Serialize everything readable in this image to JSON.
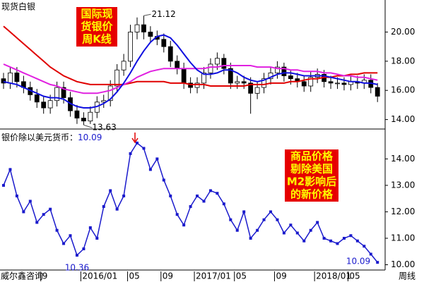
{
  "chart_data": [
    {
      "type": "candlestick",
      "title": "现货白银",
      "badge": [
        "国际现",
        "货银价",
        "周K线"
      ],
      "open": [
        16.8,
        16.5,
        17.2,
        16.6,
        16.2,
        15.7,
        15.2,
        14.8,
        15.3,
        16.2,
        15.5,
        14.6,
        14.1,
        13.9,
        14.5,
        15.2,
        15.3,
        16.3,
        17.4,
        18.0,
        20.0,
        20.5,
        20.0,
        19.7,
        19.5,
        19.0,
        18.0,
        17.5,
        16.5,
        16.2,
        16.5,
        17.2,
        17.8,
        18.2,
        17.5,
        16.5,
        16.6,
        16.5,
        15.8,
        16.2,
        16.8,
        17.2,
        17.6,
        17.0,
        16.8,
        16.6,
        16.3,
        16.9,
        17.1,
        16.6,
        16.5,
        16.5,
        16.4,
        16.6,
        16.5,
        16.7,
        16.2
      ],
      "high": [
        17.2,
        17.6,
        17.6,
        17.0,
        16.6,
        16.1,
        15.6,
        15.7,
        16.6,
        16.6,
        15.9,
        15.0,
        14.5,
        14.9,
        15.6,
        15.7,
        16.7,
        17.8,
        18.5,
        20.5,
        21.0,
        21.12,
        20.4,
        20.1,
        19.9,
        19.4,
        18.4,
        17.9,
        16.9,
        16.9,
        17.6,
        18.2,
        18.6,
        18.5,
        17.9,
        17.0,
        17.0,
        16.9,
        16.6,
        17.2,
        17.6,
        18.0,
        17.9,
        17.4,
        17.2,
        17.0,
        17.3,
        17.5,
        17.4,
        17.0,
        16.9,
        16.9,
        17.0,
        17.0,
        17.1,
        17.1,
        16.5
      ],
      "low": [
        16.1,
        16.1,
        16.2,
        15.8,
        15.3,
        14.8,
        14.4,
        14.4,
        14.9,
        15.1,
        14.2,
        13.7,
        13.63,
        13.7,
        14.1,
        14.8,
        14.9,
        15.9,
        17.0,
        17.6,
        19.5,
        19.5,
        19.3,
        19.1,
        18.6,
        17.6,
        17.1,
        16.1,
        15.8,
        15.8,
        16.1,
        16.8,
        17.4,
        17.1,
        16.1,
        16.1,
        16.1,
        14.4,
        15.4,
        15.8,
        16.4,
        16.8,
        16.6,
        16.4,
        16.2,
        15.9,
        15.9,
        16.5,
        16.2,
        16.1,
        16.1,
        16.0,
        16.0,
        16.1,
        16.1,
        15.8,
        15.2
      ],
      "close": [
        16.5,
        17.2,
        16.6,
        16.2,
        15.7,
        15.2,
        14.8,
        15.3,
        16.2,
        15.5,
        14.6,
        14.1,
        13.9,
        14.5,
        15.2,
        15.3,
        16.3,
        17.4,
        18.0,
        20.0,
        20.5,
        20.0,
        19.7,
        19.5,
        19.0,
        18.0,
        17.5,
        16.5,
        16.2,
        16.5,
        17.2,
        17.8,
        18.2,
        17.5,
        16.5,
        16.6,
        16.5,
        15.8,
        16.2,
        16.8,
        17.2,
        17.6,
        17.0,
        16.8,
        16.6,
        16.3,
        16.9,
        17.1,
        16.6,
        16.5,
        16.5,
        16.4,
        16.6,
        16.5,
        16.7,
        16.2,
        15.6
      ],
      "color": "#000000",
      "series": [
        {
          "color": "#e00000",
          "values": [
            20.4,
            20.0,
            19.6,
            19.2,
            18.8,
            18.4,
            18.0,
            17.6,
            17.3,
            17.0,
            16.8,
            16.6,
            16.5,
            16.4,
            16.4,
            16.4,
            16.4,
            16.4,
            16.4,
            16.5,
            16.6,
            16.6,
            16.6,
            16.6,
            16.6,
            16.5,
            16.5,
            16.5,
            16.4,
            16.4,
            16.4,
            16.3,
            16.3,
            16.3,
            16.3,
            16.3,
            16.3,
            16.4,
            16.4,
            16.4,
            16.5,
            16.5,
            16.5,
            16.6,
            16.6,
            16.7,
            16.8,
            16.8,
            16.9,
            16.9,
            17.0,
            17.0,
            17.1,
            17.1,
            17.2,
            17.2,
            17.2
          ]
        },
        {
          "color": "#e020e0",
          "values": [
            17.8,
            17.6,
            17.4,
            17.2,
            17.0,
            16.8,
            16.6,
            16.4,
            16.3,
            16.1,
            16.0,
            15.9,
            15.8,
            15.8,
            15.8,
            15.9,
            16.0,
            16.2,
            16.4,
            16.6,
            16.9,
            17.1,
            17.3,
            17.4,
            17.5,
            17.5,
            17.5,
            17.5,
            17.5,
            17.5,
            17.5,
            17.6,
            17.6,
            17.7,
            17.7,
            17.7,
            17.7,
            17.7,
            17.6,
            17.6,
            17.6,
            17.5,
            17.5,
            17.4,
            17.4,
            17.3,
            17.3,
            17.3,
            17.2,
            17.2,
            17.1,
            17.0,
            17.0,
            16.9,
            16.9,
            16.8,
            16.7
          ]
        },
        {
          "color": "#1010e0",
          "values": [
            16.6,
            16.5,
            16.4,
            16.2,
            16.0,
            15.8,
            15.6,
            15.5,
            15.5,
            15.4,
            15.1,
            14.9,
            14.8,
            14.8,
            14.9,
            15.1,
            15.4,
            15.9,
            16.5,
            17.2,
            18.0,
            18.7,
            19.3,
            19.7,
            19.8,
            19.6,
            19.1,
            18.5,
            17.9,
            17.4,
            17.1,
            17.1,
            17.2,
            17.4,
            17.4,
            17.2,
            16.9,
            16.7,
            16.6,
            16.7,
            16.9,
            17.1,
            17.2,
            17.2,
            17.1,
            17.0,
            17.0,
            17.0,
            17.0,
            16.9,
            16.8,
            16.7,
            16.6,
            16.6,
            16.5,
            16.5,
            16.4
          ]
        }
      ],
      "ylim": [
        13.4,
        22.1
      ],
      "yticks": [
        {
          "value": 14,
          "label": "14.00"
        },
        {
          "value": 16,
          "label": "16.00"
        },
        {
          "value": 18,
          "label": "18.00"
        },
        {
          "value": 20,
          "label": "20.00"
        }
      ]
    },
    {
      "type": "line",
      "label": "银价除以美元货币：",
      "badge": [
        "商品价格",
        "剔除美国",
        "M2影响后",
        "的新价格"
      ],
      "categories": [
        null,
        null,
        null,
        null,
        null,
        null,
        "9",
        null,
        null,
        null,
        null,
        null,
        "2016/01",
        null,
        null,
        null,
        null,
        null,
        null,
        "05",
        null,
        null,
        null,
        null,
        "09",
        null,
        null,
        null,
        null,
        "2017/01",
        null,
        null,
        null,
        null,
        null,
        "05",
        null,
        null,
        null,
        null,
        null,
        "09",
        null,
        null,
        null,
        null,
        null,
        "2018/01",
        null,
        null,
        null,
        null,
        "05",
        null,
        null,
        null,
        null
      ],
      "values": [
        13.0,
        13.6,
        12.6,
        12.0,
        12.4,
        11.6,
        11.9,
        12.1,
        11.3,
        10.8,
        11.1,
        10.36,
        10.6,
        11.4,
        11.0,
        12.2,
        12.8,
        12.1,
        12.6,
        14.2,
        14.6,
        14.4,
        13.6,
        14.0,
        13.2,
        12.6,
        11.9,
        11.5,
        12.2,
        12.6,
        12.4,
        12.8,
        12.7,
        12.3,
        11.7,
        11.3,
        12.0,
        11.0,
        11.3,
        11.7,
        12.0,
        11.7,
        11.2,
        11.5,
        11.2,
        10.9,
        11.3,
        11.6,
        11.0,
        10.9,
        10.8,
        11.0,
        11.1,
        10.9,
        10.7,
        10.4,
        10.09
      ],
      "color": "#1a1acc",
      "ylim": [
        9.8,
        15.05
      ],
      "yticks": [
        {
          "value": 10,
          "label": "10.00"
        },
        {
          "value": 11,
          "label": "11.00"
        },
        {
          "value": 12,
          "label": "12.00"
        },
        {
          "value": 13,
          "label": "13.00"
        },
        {
          "value": 14,
          "label": "14.00"
        }
      ],
      "source": "威尔鑫咨询",
      "x_label": "周线"
    }
  ]
}
